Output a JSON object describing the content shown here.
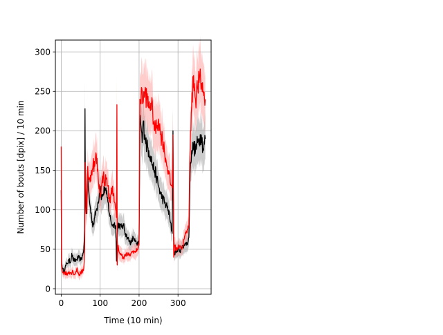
{
  "chart_data": {
    "type": "line",
    "xlabel": "Time (10 min)",
    "ylabel": "Number of bouts [dpix]  / 10 min",
    "xlim": [
      -15,
      385
    ],
    "ylim": [
      -7,
      315
    ],
    "xticks": [
      0,
      100,
      200,
      300
    ],
    "yticks": [
      0,
      50,
      100,
      150,
      200,
      250,
      300
    ],
    "grid": true,
    "series": [
      {
        "color": "#000000",
        "band_color": "#999999",
        "x": [
          0,
          1,
          3,
          6,
          10,
          15,
          20,
          24,
          27,
          30,
          35,
          40,
          45,
          50,
          55,
          58,
          60,
          61,
          62,
          64,
          66,
          68,
          70,
          74,
          78,
          82,
          86,
          90,
          95,
          100,
          104,
          108,
          112,
          116,
          120,
          124,
          128,
          132,
          136,
          140,
          142,
          144,
          146,
          150,
          155,
          160,
          165,
          170,
          175,
          180,
          185,
          190,
          195,
          200,
          201,
          202,
          204,
          206,
          208,
          210,
          215,
          220,
          225,
          230,
          235,
          240,
          245,
          250,
          255,
          260,
          265,
          270,
          275,
          280,
          285,
          287,
          289,
          291,
          295,
          300,
          305,
          310,
          315,
          320,
          325,
          328,
          330,
          332,
          335,
          340,
          345,
          350,
          355,
          360,
          365,
          370
        ],
        "y": [
          125,
          35,
          25,
          22,
          27,
          32,
          36,
          33,
          45,
          38,
          35,
          37,
          40,
          36,
          42,
          50,
          75,
          228,
          120,
          95,
          110,
          140,
          125,
          105,
          90,
          80,
          90,
          100,
          110,
          130,
          115,
          120,
          128,
          120,
          110,
          95,
          85,
          80,
          82,
          80,
          35,
          70,
          82,
          80,
          78,
          80,
          70,
          65,
          60,
          58,
          65,
          60,
          55,
          60,
          120,
          220,
          210,
          200,
          185,
          210,
          195,
          180,
          175,
          168,
          155,
          150,
          140,
          130,
          120,
          115,
          110,
          105,
          100,
          85,
          70,
          200,
          60,
          45,
          47,
          50,
          48,
          52,
          55,
          57,
          58,
          65,
          120,
          160,
          175,
          180,
          175,
          185,
          190,
          195,
          175,
          190
        ]
      },
      {
        "color": "#ff0000",
        "band_color": "#ff9999",
        "x": [
          0,
          1,
          3,
          6,
          10,
          15,
          20,
          25,
          30,
          35,
          40,
          45,
          50,
          55,
          58,
          60,
          61,
          62,
          64,
          66,
          68,
          70,
          74,
          78,
          82,
          86,
          90,
          95,
          100,
          104,
          108,
          112,
          116,
          120,
          124,
          128,
          132,
          136,
          140,
          142,
          143,
          144,
          146,
          150,
          155,
          160,
          165,
          170,
          175,
          180,
          185,
          190,
          195,
          200,
          201,
          202,
          204,
          206,
          208,
          210,
          215,
          220,
          225,
          230,
          235,
          240,
          245,
          250,
          255,
          260,
          265,
          270,
          275,
          280,
          285,
          287,
          289,
          291,
          295,
          300,
          305,
          310,
          315,
          320,
          325,
          328,
          330,
          332,
          335,
          340,
          345,
          350,
          355,
          360,
          365,
          370
        ],
        "y": [
          180,
          30,
          22,
          20,
          21,
          18,
          22,
          20,
          22,
          18,
          25,
          18,
          20,
          22,
          26,
          45,
          105,
          160,
          125,
          95,
          155,
          140,
          135,
          150,
          160,
          155,
          170,
          140,
          120,
          130,
          145,
          135,
          140,
          130,
          110,
          120,
          130,
          110,
          100,
          90,
          233,
          30,
          55,
          45,
          42,
          40,
          42,
          44,
          42,
          45,
          48,
          46,
          50,
          55,
          150,
          240,
          235,
          255,
          250,
          235,
          250,
          240,
          230,
          235,
          225,
          200,
          205,
          215,
          195,
          190,
          175,
          160,
          150,
          135,
          128,
          195,
          40,
          55,
          50,
          52,
          55,
          50,
          62,
          70,
          75,
          80,
          160,
          200,
          230,
          270,
          240,
          255,
          265,
          260,
          250,
          240
        ]
      }
    ]
  }
}
